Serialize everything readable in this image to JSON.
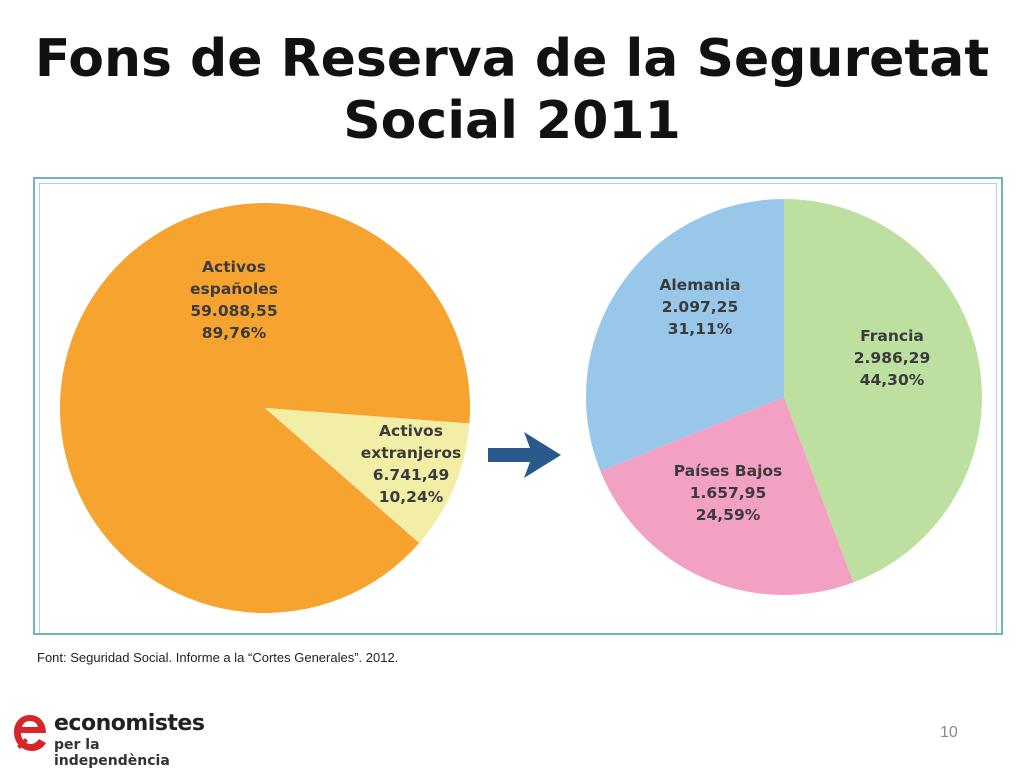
{
  "title_lines": [
    "Fons de Reserva de la Seguretat",
    "Social 2011"
  ],
  "source_note": "Font: Seguridad Social. Informe a la “Cortes Generales”. 2012.",
  "page_number": "10",
  "logo": {
    "name": "economistes",
    "tagline": "per la independència",
    "icon": "economistes-logo-icon",
    "color": "#d7262b"
  },
  "arrow": {
    "icon": "arrow-right-icon",
    "color": "#2a5a8c"
  },
  "chart_data": [
    {
      "type": "pie",
      "slices": [
        {
          "label_lines": [
            "Activos",
            "españoles"
          ],
          "value": 59088.55,
          "value_text": "59.088,55",
          "percent": 89.76,
          "percent_text": "89,76%",
          "color": "#f7a330"
        },
        {
          "label_lines": [
            "Activos",
            "extranjeros"
          ],
          "value": 6741.49,
          "value_text": "6.741,49",
          "percent": 10.24,
          "percent_text": "10,24%",
          "color": "#f3eea6"
        }
      ]
    },
    {
      "type": "pie",
      "slices": [
        {
          "label_lines": [
            "Francia"
          ],
          "value": 2986.29,
          "value_text": "2.986,29",
          "percent": 44.3,
          "percent_text": "44,30%",
          "color": "#bde0a0"
        },
        {
          "label_lines": [
            "Países Bajos"
          ],
          "value": 1657.95,
          "value_text": "1.657,95",
          "percent": 24.59,
          "percent_text": "24,59%",
          "color": "#f3a0c5"
        },
        {
          "label_lines": [
            "Alemania"
          ],
          "value": 2097.25,
          "value_text": "2.097,25",
          "percent": 31.11,
          "percent_text": "31,11%",
          "color": "#98c7ea"
        }
      ]
    }
  ]
}
